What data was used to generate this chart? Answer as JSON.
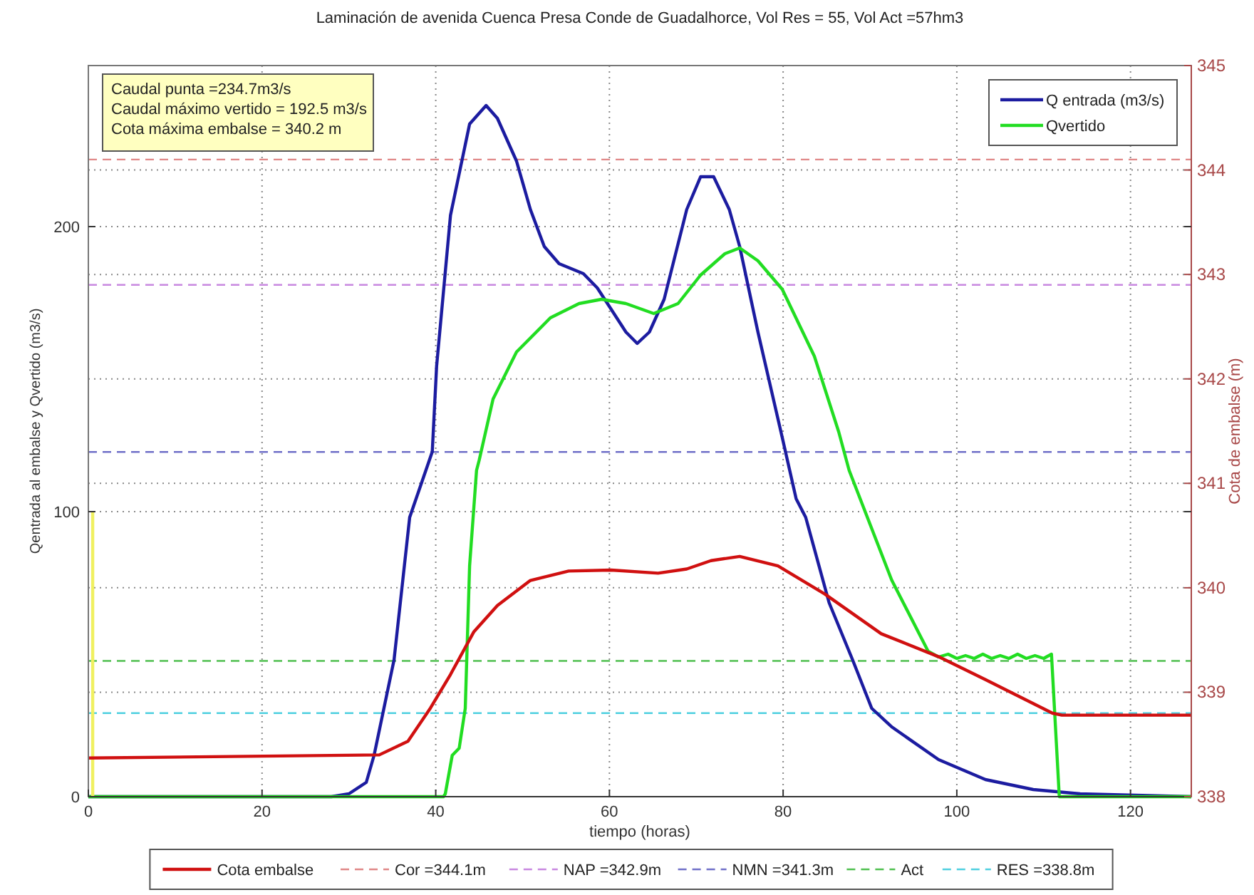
{
  "chart_data": {
    "type": "line",
    "title": "Laminación de avenida Cuenca Presa Conde de Guadalhorce, Vol Res = 55, Vol Act =57hm3",
    "xlabel": "tiempo (horas)",
    "ylabel": "Qentrada al embalse y Qvertido (m3/s)",
    "y2label": "Cota de embalse (m)",
    "annotations": [
      "Caudal punta =234.7m3/s",
      "Caudal máximo vertido = 192.5 m3/s",
      "Cota máxima embalse = 340.2 m"
    ],
    "xlim": [
      0,
      127
    ],
    "xticks": [
      0,
      20,
      40,
      60,
      80,
      100,
      120
    ],
    "ylim": [
      0,
      256.5
    ],
    "yticks": [
      0,
      100,
      200
    ],
    "y2lim": [
      338,
      345
    ],
    "y2ticks": [
      338,
      339,
      340,
      341,
      342,
      343,
      344,
      345
    ],
    "grid": true,
    "legend": "bottom",
    "marker": "none",
    "line_style": "solid",
    "series": [
      {
        "name": "Q entrada (m3/s)",
        "color": "#1c1ca0",
        "x": [
          0,
          28,
          30,
          32,
          32.9,
          35.2,
          37,
          39.6,
          40.1,
          41.7,
          43.9,
          45.8,
          47.1,
          49.3,
          50.9,
          52.5,
          54.2,
          57,
          58.6,
          60.2,
          61.9,
          63.2,
          64.6,
          66.3,
          68.9,
          70.5,
          72,
          73.8,
          75,
          77.1,
          79.9,
          81.5,
          82.6,
          85.3,
          88,
          90.2,
          92.5,
          97.9,
          103.3,
          108.8,
          114.2,
          123,
          127
        ],
        "values": [
          0,
          0,
          1,
          5,
          14.5,
          48,
          98,
          121,
          151,
          204,
          236,
          242.5,
          238,
          223,
          206,
          193,
          187,
          183.5,
          178.5,
          171,
          163,
          159,
          163,
          174.5,
          206,
          217.5,
          217.5,
          206,
          193,
          163,
          126,
          104.5,
          98,
          68,
          48,
          31,
          24.5,
          13,
          6,
          2.5,
          1,
          0.3,
          0
        ]
      },
      {
        "name": "Qvertido",
        "color": "#22dd22",
        "x": [
          0,
          40.9,
          41.1,
          41.9,
          42.7,
          43.4,
          43.9,
          44.7,
          45,
          46.6,
          49.3,
          53.2,
          56.5,
          59.1,
          61.9,
          65.1,
          67.9,
          70.5,
          73.3,
          75,
          77.1,
          79.9,
          83.6,
          86.4,
          87.6,
          92.5,
          96.7,
          97.9,
          99,
          100,
          101,
          102,
          103,
          104,
          105,
          106,
          107,
          108,
          109,
          110,
          110.9,
          111.8,
          127
        ],
        "values": [
          0,
          0,
          1,
          14.5,
          17,
          31,
          81,
          114.5,
          118,
          139.5,
          156,
          168,
          173,
          174.5,
          173,
          169.5,
          173,
          183,
          190.5,
          192.5,
          188,
          178,
          154.5,
          128,
          114.5,
          76,
          51,
          49,
          50,
          48.5,
          49.5,
          48.5,
          50,
          48.5,
          49.5,
          48.5,
          50,
          48.5,
          49.5,
          48.5,
          50,
          0,
          0
        ]
      },
      {
        "color": "#f0f060",
        "x": [
          0.5,
          0.5
        ],
        "values": [
          0,
          100
        ]
      },
      {
        "name": "Cota embalse",
        "color": "#d01010",
        "axis": "y2",
        "x": [
          0,
          33.5,
          36.8,
          39.4,
          41.7,
          44.4,
          47.1,
          50.9,
          55.3,
          60.2,
          65.6,
          68.9,
          71.7,
          75,
          79.4,
          84.8,
          91.3,
          97.9,
          103.3,
          111,
          112.1,
          127
        ],
        "values": [
          338.37,
          338.4,
          338.53,
          338.85,
          339.17,
          339.58,
          339.83,
          340.07,
          340.16,
          340.17,
          340.14,
          340.18,
          340.26,
          340.3,
          340.21,
          339.94,
          339.56,
          339.34,
          339.12,
          338.8,
          338.78,
          338.78
        ]
      }
    ],
    "ref_lines": [
      {
        "axis": "y2",
        "value": 344.1,
        "label": "Cor =344.1m",
        "color": "#e08888",
        "line_style": "dashed"
      },
      {
        "axis": "y2",
        "value": 342.9,
        "label": "NAP =342.9m",
        "color": "#c888e0",
        "line_style": "dashed"
      },
      {
        "axis": "y2",
        "value": 341.3,
        "label": "NMN =341.3m",
        "color": "#7070c8",
        "line_style": "dashed"
      },
      {
        "axis": "y2",
        "value": 339.3,
        "label": "Act",
        "color": "#50c050",
        "line_style": "dashed"
      },
      {
        "axis": "y2",
        "value": 338.8,
        "label": "RES =338.8m",
        "color": "#50d0e0",
        "line_style": "dashed"
      }
    ]
  }
}
